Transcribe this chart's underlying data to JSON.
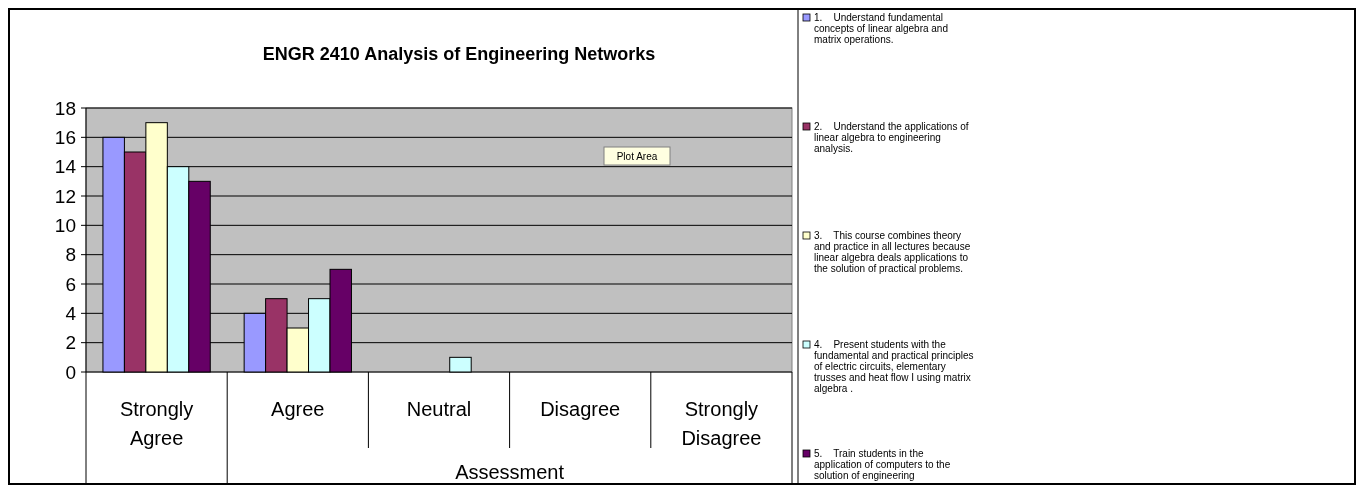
{
  "chart_data": {
    "type": "bar",
    "title": "ENGR 2410 Analysis of Engineering Networks",
    "xlabel": "Assessment",
    "categories": [
      "Strongly Agree",
      "Agree",
      "Neutral",
      "Disagree",
      "Strongly Disagree"
    ],
    "series": [
      {
        "name": "1.    Understand fundamental concepts of linear algebra and matrix operations.",
        "color": "#9999ff",
        "values": [
          16,
          4,
          0,
          0,
          0
        ]
      },
      {
        "name": "2.    Understand the applications of linear algebra to engineering analysis.",
        "color": "#993366",
        "values": [
          15,
          5,
          0,
          0,
          0
        ]
      },
      {
        "name": "3.    This course combines theory and practice in all lectures because linear algebra deals applications to the solution of practical problems.",
        "color": "#ffffcc",
        "values": [
          17,
          3,
          0,
          0,
          0
        ]
      },
      {
        "name": "4.    Present students with the fundamental and practical principles of electric circuits, elementary trusses and heat flow I using matrix algebra .",
        "color": "#ccffff",
        "values": [
          14,
          5,
          1,
          0,
          0
        ]
      },
      {
        "name": "5.    Train students in the application of computers to the solution of engineering",
        "color": "#660066",
        "values": [
          13,
          7,
          0,
          0,
          0
        ]
      }
    ],
    "ylim": [
      0,
      18
    ],
    "yticks": [
      0,
      2,
      4,
      6,
      8,
      10,
      12,
      14,
      16,
      18
    ],
    "grid": "y",
    "legend": "right",
    "annotations": [
      "Plot Area"
    ]
  }
}
